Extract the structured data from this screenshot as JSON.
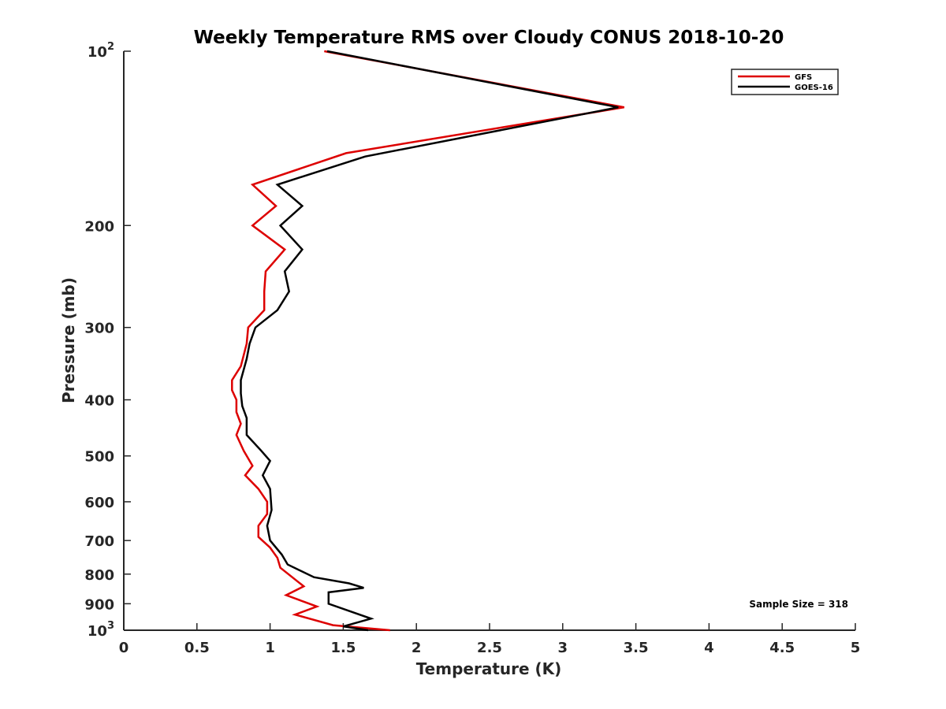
{
  "chart_data": {
    "type": "line",
    "title": "Weekly Temperature RMS over Cloudy CONUS 2018-10-20",
    "xlabel": "Temperature (K)",
    "ylabel": "Pressure (mb)",
    "xlim": [
      0,
      5
    ],
    "ylim": [
      100,
      1000
    ],
    "yscale": "log",
    "y_reversed": true,
    "x_ticks": [
      0,
      0.5,
      1,
      1.5,
      2,
      2.5,
      3,
      3.5,
      4,
      4.5,
      5
    ],
    "x_tick_labels": [
      "0",
      "0.5",
      "1",
      "1.5",
      "2",
      "2.5",
      "3",
      "3.5",
      "4",
      "4.5",
      "5"
    ],
    "y_ticks": [
      100,
      200,
      300,
      400,
      500,
      600,
      700,
      800,
      900,
      1000
    ],
    "y_tick_labels": [
      {
        "base": "10",
        "exp": "2"
      },
      {
        "text": "200"
      },
      {
        "text": "300"
      },
      {
        "text": "400"
      },
      {
        "text": "500"
      },
      {
        "text": "600"
      },
      {
        "text": "700"
      },
      {
        "text": "800"
      },
      {
        "text": "900"
      },
      {
        "base": "10",
        "exp": "3"
      }
    ],
    "grid": false,
    "legend_position": "top-right",
    "annotation": "Sample Size = 318",
    "series": [
      {
        "name": "GFS",
        "color": "#dd0000",
        "points": [
          {
            "x": 1.37,
            "p": 100
          },
          {
            "x": 3.42,
            "p": 125
          },
          {
            "x": 1.52,
            "p": 150
          },
          {
            "x": 0.88,
            "p": 170
          },
          {
            "x": 1.04,
            "p": 185
          },
          {
            "x": 0.88,
            "p": 200
          },
          {
            "x": 1.1,
            "p": 220
          },
          {
            "x": 0.97,
            "p": 240
          },
          {
            "x": 0.96,
            "p": 260
          },
          {
            "x": 0.96,
            "p": 280
          },
          {
            "x": 0.85,
            "p": 300
          },
          {
            "x": 0.84,
            "p": 320
          },
          {
            "x": 0.8,
            "p": 350
          },
          {
            "x": 0.74,
            "p": 370
          },
          {
            "x": 0.74,
            "p": 385
          },
          {
            "x": 0.77,
            "p": 400
          },
          {
            "x": 0.77,
            "p": 420
          },
          {
            "x": 0.8,
            "p": 440
          },
          {
            "x": 0.77,
            "p": 460
          },
          {
            "x": 0.82,
            "p": 490
          },
          {
            "x": 0.88,
            "p": 520
          },
          {
            "x": 0.83,
            "p": 540
          },
          {
            "x": 0.92,
            "p": 570
          },
          {
            "x": 0.98,
            "p": 600
          },
          {
            "x": 0.98,
            "p": 630
          },
          {
            "x": 0.92,
            "p": 660
          },
          {
            "x": 0.92,
            "p": 690
          },
          {
            "x": 1.0,
            "p": 720
          },
          {
            "x": 1.05,
            "p": 750
          },
          {
            "x": 1.07,
            "p": 780
          },
          {
            "x": 1.23,
            "p": 840
          },
          {
            "x": 1.11,
            "p": 870
          },
          {
            "x": 1.32,
            "p": 910
          },
          {
            "x": 1.17,
            "p": 940
          },
          {
            "x": 1.43,
            "p": 980
          },
          {
            "x": 1.82,
            "p": 1000
          }
        ]
      },
      {
        "name": "GOES-16",
        "color": "#000000",
        "points": [
          {
            "x": 1.39,
            "p": 100
          },
          {
            "x": 3.38,
            "p": 125
          },
          {
            "x": 1.65,
            "p": 152
          },
          {
            "x": 1.05,
            "p": 170
          },
          {
            "x": 1.22,
            "p": 185
          },
          {
            "x": 1.07,
            "p": 200
          },
          {
            "x": 1.22,
            "p": 220
          },
          {
            "x": 1.1,
            "p": 240
          },
          {
            "x": 1.13,
            "p": 260
          },
          {
            "x": 1.05,
            "p": 280
          },
          {
            "x": 0.9,
            "p": 300
          },
          {
            "x": 0.86,
            "p": 320
          },
          {
            "x": 0.84,
            "p": 340
          },
          {
            "x": 0.8,
            "p": 370
          },
          {
            "x": 0.8,
            "p": 390
          },
          {
            "x": 0.81,
            "p": 410
          },
          {
            "x": 0.84,
            "p": 430
          },
          {
            "x": 0.84,
            "p": 460
          },
          {
            "x": 0.94,
            "p": 490
          },
          {
            "x": 1.0,
            "p": 510
          },
          {
            "x": 0.95,
            "p": 540
          },
          {
            "x": 1.0,
            "p": 570
          },
          {
            "x": 1.01,
            "p": 620
          },
          {
            "x": 0.98,
            "p": 660
          },
          {
            "x": 1.0,
            "p": 700
          },
          {
            "x": 1.08,
            "p": 740
          },
          {
            "x": 1.12,
            "p": 770
          },
          {
            "x": 1.3,
            "p": 810
          },
          {
            "x": 1.54,
            "p": 830
          },
          {
            "x": 1.64,
            "p": 845
          },
          {
            "x": 1.4,
            "p": 860
          },
          {
            "x": 1.4,
            "p": 900
          },
          {
            "x": 1.69,
            "p": 955
          },
          {
            "x": 1.5,
            "p": 985
          },
          {
            "x": 1.67,
            "p": 1000
          }
        ]
      }
    ]
  }
}
